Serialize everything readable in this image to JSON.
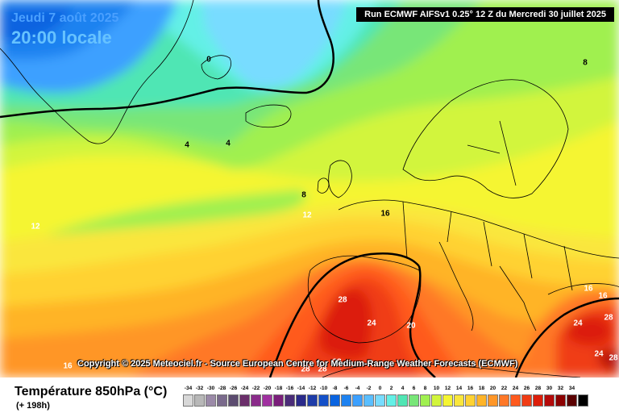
{
  "header": {
    "date": "Jeudi 7 août 2025",
    "time": "20:00 locale",
    "run": "Run ECMWF AIFSv1 0.25° 12 Z du Mercredi 30 juillet 2025"
  },
  "copyright": "Copyright © 2025 Meteociel.fr - Source European Centre for Medium-Range Weather Forecasts (ECMWF)",
  "footer": {
    "title": "Température 850hPa (°C)",
    "subtitle": "(+ 198h)"
  },
  "isotherm_labels": [
    {
      "id": "iso-0-iceland-north",
      "text": "0"
    },
    {
      "id": "iso-4-iceland",
      "text": "4"
    },
    {
      "id": "iso-4-greenland",
      "text": "4"
    },
    {
      "id": "iso-8-north",
      "text": "8"
    },
    {
      "id": "iso-8-ireland",
      "text": "8"
    },
    {
      "id": "iso-12-atlantic",
      "text": "12"
    },
    {
      "id": "iso-12-uk",
      "text": "12"
    },
    {
      "id": "iso-16-france",
      "text": "16"
    },
    {
      "id": "iso-16-greece-a",
      "text": "16"
    },
    {
      "id": "iso-16-greece-b",
      "text": "16"
    },
    {
      "id": "iso-16-southwest",
      "text": "16"
    },
    {
      "id": "iso-20-spain",
      "text": "20"
    },
    {
      "id": "iso-24-spain",
      "text": "24"
    },
    {
      "id": "iso-28-spain",
      "text": "28"
    },
    {
      "id": "iso-24-turkey",
      "text": "24"
    },
    {
      "id": "iso-28-turkey",
      "text": "28"
    },
    {
      "id": "iso-24-turkey-south",
      "text": "24"
    },
    {
      "id": "iso-28-east",
      "text": "28"
    },
    {
      "id": "iso-28-africa-a",
      "text": "28"
    },
    {
      "id": "iso-28-africa-b",
      "text": "28"
    },
    {
      "id": "iso-28-africa-c",
      "text": "28"
    }
  ],
  "scale": [
    {
      "label": "-34",
      "color": "#d8d8d8"
    },
    {
      "label": "-32",
      "color": "#b8b8b8"
    },
    {
      "label": "-30",
      "color": "#9b8aa8"
    },
    {
      "label": "-28",
      "color": "#7a6a8c"
    },
    {
      "label": "-26",
      "color": "#5c4c70"
    },
    {
      "label": "-24",
      "color": "#6b2f6b"
    },
    {
      "label": "-22",
      "color": "#8a2b8a"
    },
    {
      "label": "-20",
      "color": "#a030a0"
    },
    {
      "label": "-18",
      "color": "#7a1e7a"
    },
    {
      "label": "-16",
      "color": "#4a2c78"
    },
    {
      "label": "-14",
      "color": "#2a2a8a"
    },
    {
      "label": "-12",
      "color": "#1e3ca8"
    },
    {
      "label": "-10",
      "color": "#1450c8"
    },
    {
      "label": "-8",
      "color": "#0a64e0"
    },
    {
      "label": "-6",
      "color": "#1e82f0"
    },
    {
      "label": "-4",
      "color": "#3ca0ff"
    },
    {
      "label": "-2",
      "color": "#5abeff"
    },
    {
      "label": "0",
      "color": "#78dcff"
    },
    {
      "label": "2",
      "color": "#64f0e6"
    },
    {
      "label": "4",
      "color": "#50e6b4"
    },
    {
      "label": "6",
      "color": "#78e678"
    },
    {
      "label": "8",
      "color": "#a0f050"
    },
    {
      "label": "10",
      "color": "#d2f53c"
    },
    {
      "label": "12",
      "color": "#f5f532"
    },
    {
      "label": "14",
      "color": "#fae63c"
    },
    {
      "label": "16",
      "color": "#ffd232"
    },
    {
      "label": "18",
      "color": "#ffb428"
    },
    {
      "label": "20",
      "color": "#ff9628"
    },
    {
      "label": "22",
      "color": "#ff7828"
    },
    {
      "label": "24",
      "color": "#ff5a1e"
    },
    {
      "label": "26",
      "color": "#f03c14"
    },
    {
      "label": "28",
      "color": "#dc1e0a"
    },
    {
      "label": "30",
      "color": "#b40a0a"
    },
    {
      "label": "32",
      "color": "#8c0000"
    },
    {
      "label": "34",
      "color": "#5a0000"
    },
    {
      "label": "",
      "color": "#000000"
    }
  ]
}
